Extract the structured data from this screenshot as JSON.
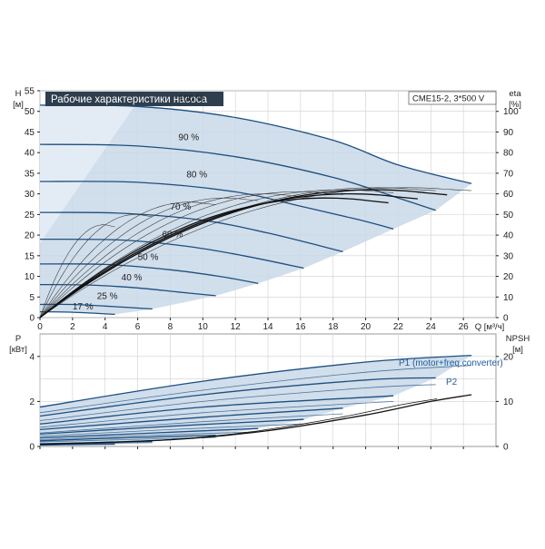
{
  "chart_data": [
    {
      "type": "line",
      "title": "Рабочие характеристики насоса",
      "subtitle": "CME15-2, 3*500 V",
      "x_axis": {
        "label": "Q [м³/ч]",
        "ticks": [
          0,
          2,
          4,
          6,
          8,
          10,
          12,
          14,
          16,
          18,
          20,
          22,
          24,
          26
        ],
        "range": [
          0,
          28
        ]
      },
      "y_left": {
        "label_top": "H",
        "label_bottom": "[м]",
        "ticks": [
          0,
          5,
          10,
          15,
          20,
          25,
          30,
          35,
          40,
          45,
          50,
          55
        ],
        "range": [
          0,
          55
        ]
      },
      "y_right": {
        "label_top": "eta",
        "label_bottom": "[%]",
        "ticks": [
          0,
          10,
          20,
          30,
          40,
          50,
          60,
          70,
          80,
          90,
          100
        ],
        "range": [
          0,
          110
        ]
      },
      "grid": true,
      "speed_labels": [
        "100 %",
        "90 %",
        "80 %",
        "70 %",
        "60 %",
        "50 %",
        "40 %",
        "25 %",
        "17 %"
      ],
      "series": [
        {
          "speed": 100,
          "H": [
            [
              0,
              51.5
            ],
            [
              6,
              51.2
            ],
            [
              12,
              48.5
            ],
            [
              18,
              43
            ],
            [
              22,
              37
            ],
            [
              26.5,
              32.5
            ]
          ],
          "eta_max": 63
        },
        {
          "speed": 90,
          "H": [
            [
              0,
              42
            ],
            [
              6,
              41.6
            ],
            [
              12,
              39
            ],
            [
              18,
              34
            ],
            [
              22,
              29
            ],
            [
              24.3,
              26
            ]
          ],
          "eta_max": 63
        },
        {
          "speed": 80,
          "H": [
            [
              0,
              33
            ],
            [
              6,
              32.8
            ],
            [
              12,
              30.5
            ],
            [
              16,
              27
            ],
            [
              19.5,
              23.8
            ],
            [
              21.7,
              21.5
            ]
          ],
          "eta_max": 62
        },
        {
          "speed": 70,
          "H": [
            [
              0,
              25.5
            ],
            [
              5,
              25.3
            ],
            [
              10,
              23.6
            ],
            [
              14,
              20.5
            ],
            [
              18.6,
              16
            ]
          ],
          "eta_max": 61
        },
        {
          "speed": 60,
          "H": [
            [
              0,
              19
            ],
            [
              5,
              18.8
            ],
            [
              9,
              17.3
            ],
            [
              12.5,
              15
            ],
            [
              16.2,
              12
            ]
          ],
          "eta_max": 60
        },
        {
          "speed": 50,
          "H": [
            [
              0,
              13
            ],
            [
              4,
              12.9
            ],
            [
              8,
              11.6
            ],
            [
              11,
              10
            ],
            [
              13.4,
              8.3
            ]
          ],
          "eta_max": 58
        },
        {
          "speed": 40,
          "H": [
            [
              0,
              8
            ],
            [
              3,
              7.9
            ],
            [
              6,
              7.2
            ],
            [
              8.5,
              6.2
            ],
            [
              10.8,
              5.3
            ]
          ],
          "eta_max": 56
        },
        {
          "speed": 25,
          "H": [
            [
              0,
              3.2
            ],
            [
              2,
              3.2
            ],
            [
              4,
              2.8
            ],
            [
              6.9,
              2.1
            ]
          ],
          "eta_max": 50
        },
        {
          "speed": 17,
          "H": [
            [
              0,
              1.4
            ],
            [
              2,
              1.3
            ],
            [
              4.6,
              0.8
            ]
          ],
          "eta_max": 45
        }
      ]
    },
    {
      "type": "line",
      "x_axis": {
        "ticks": [
          0,
          2,
          4,
          6,
          8,
          10,
          12,
          14,
          16,
          18,
          20,
          22,
          24,
          26
        ],
        "range": [
          0,
          28
        ]
      },
      "y_left": {
        "label_top": "P",
        "label_bottom": "[кВт]",
        "ticks": [
          0,
          2,
          4
        ],
        "range": [
          0,
          5
        ]
      },
      "y_right": {
        "label_top": "NPSH",
        "label_bottom": "[м]",
        "ticks": [
          0,
          10,
          20
        ],
        "range": [
          0,
          25
        ]
      },
      "grid": true,
      "legend": [
        "P1 (motor+freq.converter)",
        "P2"
      ],
      "series": [
        {
          "speed": 100,
          "P1": [
            [
              0,
              1.75
            ],
            [
              10,
              2.9
            ],
            [
              20,
              3.75
            ],
            [
              26.5,
              4.05
            ]
          ],
          "P2": [
            [
              0,
              1.5
            ],
            [
              10,
              2.5
            ],
            [
              20,
              3.3
            ],
            [
              26.5,
              3.6
            ]
          ]
        },
        {
          "speed": 90,
          "P1": [
            [
              0,
              1.35
            ],
            [
              10,
              2.3
            ],
            [
              20,
              2.95
            ],
            [
              24.3,
              3.05
            ]
          ],
          "P2": [
            [
              0,
              1.15
            ],
            [
              10,
              2.0
            ],
            [
              20,
              2.6
            ],
            [
              24.3,
              2.75
            ]
          ]
        },
        {
          "speed": 80,
          "P1": [
            [
              0,
              1.0
            ],
            [
              10,
              1.75
            ],
            [
              21.7,
              2.25
            ]
          ],
          "P2": [
            [
              0,
              0.85
            ],
            [
              10,
              1.5
            ],
            [
              21.7,
              2.0
            ]
          ]
        },
        {
          "speed": 70,
          "P1": [
            [
              0,
              0.75
            ],
            [
              10,
              1.3
            ],
            [
              18.6,
              1.7
            ]
          ],
          "P2": [
            [
              0,
              0.6
            ],
            [
              10,
              1.1
            ],
            [
              18.6,
              1.45
            ]
          ]
        },
        {
          "speed": 60,
          "P1": [
            [
              0,
              0.55
            ],
            [
              8,
              0.9
            ],
            [
              16.2,
              1.2
            ]
          ],
          "P2": [
            [
              0,
              0.45
            ],
            [
              8,
              0.75
            ],
            [
              16.2,
              1.0
            ]
          ]
        },
        {
          "speed": 50,
          "P1": [
            [
              0,
              0.38
            ],
            [
              7,
              0.6
            ],
            [
              13.4,
              0.8
            ]
          ],
          "P2": [
            [
              0,
              0.3
            ],
            [
              7,
              0.5
            ],
            [
              13.4,
              0.65
            ]
          ]
        },
        {
          "speed": 40,
          "P1": [
            [
              0,
              0.25
            ],
            [
              5,
              0.38
            ],
            [
              10.8,
              0.5
            ]
          ],
          "P2": [
            [
              0,
              0.2
            ],
            [
              5,
              0.3
            ],
            [
              10.8,
              0.4
            ]
          ]
        },
        {
          "speed": 25,
          "P1": [
            [
              0,
              0.12
            ],
            [
              3.5,
              0.17
            ],
            [
              6.9,
              0.22
            ]
          ],
          "P2": [
            [
              0,
              0.09
            ],
            [
              3.5,
              0.13
            ],
            [
              6.9,
              0.17
            ]
          ]
        },
        {
          "speed": 17,
          "P1": [
            [
              0,
              0.07
            ],
            [
              2,
              0.09
            ],
            [
              4.6,
              0.12
            ]
          ],
          "P2": [
            [
              0,
              0.05
            ],
            [
              2,
              0.07
            ],
            [
              4.6,
              0.09
            ]
          ]
        }
      ],
      "npsh": [
        [
          0,
          0.5
        ],
        [
          8,
          1.5
        ],
        [
          14,
          3.5
        ],
        [
          20,
          7
        ],
        [
          24,
          10
        ],
        [
          26.5,
          11.5
        ]
      ]
    }
  ]
}
